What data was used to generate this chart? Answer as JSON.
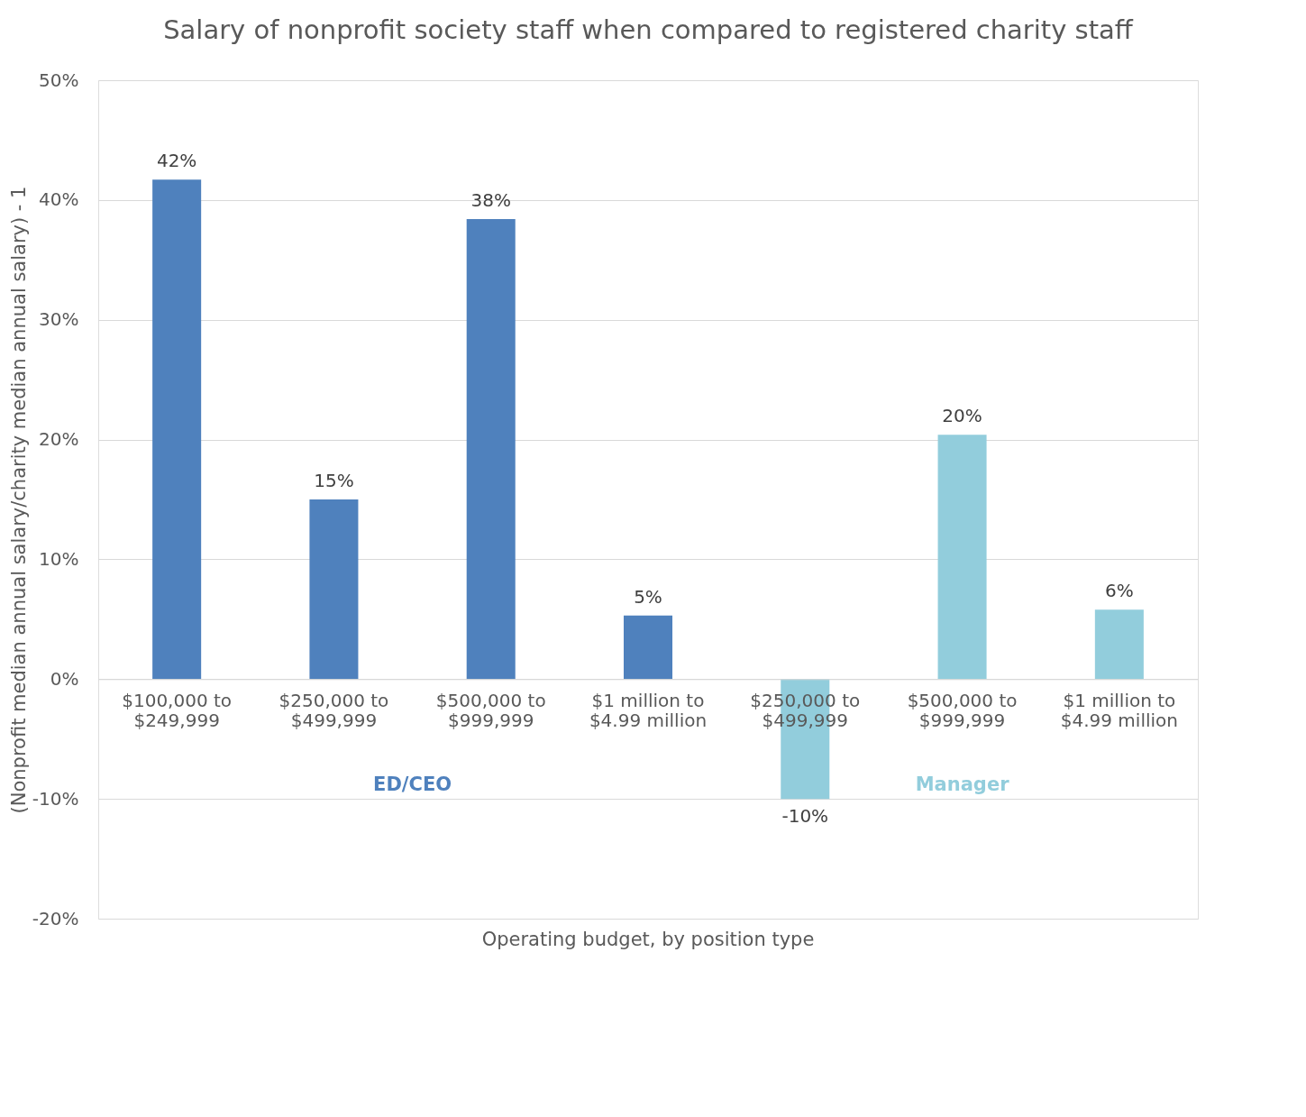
{
  "chart_data": {
    "type": "bar",
    "title": "Salary of nonprofit society staff when compared to registered charity staff",
    "xlabel": "Operating budget, by position type",
    "ylabel": "(Nonprofit median annual salary/charity median annual salary) - 1",
    "categories": [
      "$100,000 to $249,999",
      "$250,000 to $499,999",
      "$500,000 to $999,999",
      "$1 million to $4.99 million",
      "$250,000 to $499,999",
      "$500,000 to $999,999",
      "$1 million to $4.99 million"
    ],
    "series": [
      {
        "name": "ED/CEO",
        "color": "#4f81bd",
        "values": [
          41.7,
          15.0,
          38.4,
          5.3,
          null,
          null,
          null
        ],
        "value_labels": [
          "42%",
          "15%",
          "38%",
          "5%",
          null,
          null,
          null
        ]
      },
      {
        "name": "Manager",
        "color": "#92cddc",
        "values": [
          null,
          null,
          null,
          null,
          -10.0,
          20.4,
          5.8
        ],
        "value_labels": [
          null,
          null,
          null,
          null,
          "-10%",
          "20%",
          "6%"
        ]
      }
    ],
    "ylim": [
      -20,
      50
    ],
    "yticks": [
      {
        "value": -20,
        "label": "-20%"
      },
      {
        "value": -10,
        "label": "-10%"
      },
      {
        "value": 0,
        "label": "0%"
      },
      {
        "value": 10,
        "label": "10%"
      },
      {
        "value": 20,
        "label": "20%"
      },
      {
        "value": 30,
        "label": "30%"
      },
      {
        "value": 40,
        "label": "40%"
      },
      {
        "value": 50,
        "label": "50%"
      }
    ],
    "grid": "y",
    "legend": false
  }
}
